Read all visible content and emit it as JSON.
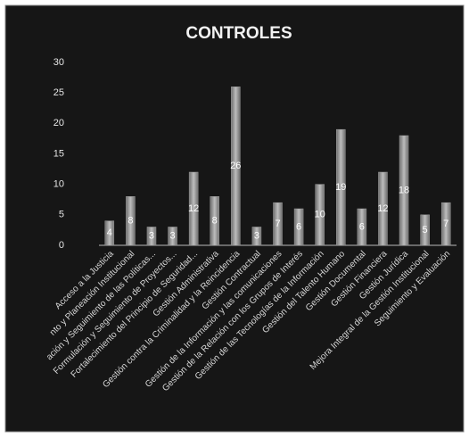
{
  "chart_data": {
    "type": "bar",
    "title": "CONTROLES",
    "categories": [
      "Acceso a la Justicia",
      "nto y Planeación Institucional",
      "ación y Seguimiento de las Políticas...",
      "Formulación y Seguimiento de Proyectos...",
      "Fortalecimiento del Principio de Seguridad...",
      "Gestión Administrativa",
      "Gestión contra la Criminalidad y la Reincidencia",
      "Gestión Contractual",
      "Gestión de la Información y las comunicaciones",
      "Gestión de la Relación con los Grupos de Interés",
      "Gestión de las Tecnologías de la Información",
      "Gestión del Talento Humano",
      "Gestión Documental",
      "Gestión Financiera",
      "Gestión Jurídica",
      "Mejora Integral de la Gestión Institucional",
      "Seguimiento y Evaluación"
    ],
    "values": [
      4,
      8,
      3,
      3,
      12,
      8,
      26,
      3,
      7,
      6,
      10,
      19,
      6,
      12,
      18,
      5,
      7
    ],
    "color": "#a0a0a0",
    "ylim": [
      0,
      30
    ],
    "yticks": [
      0,
      5,
      10,
      15,
      20,
      25,
      30
    ],
    "grid": false
  }
}
